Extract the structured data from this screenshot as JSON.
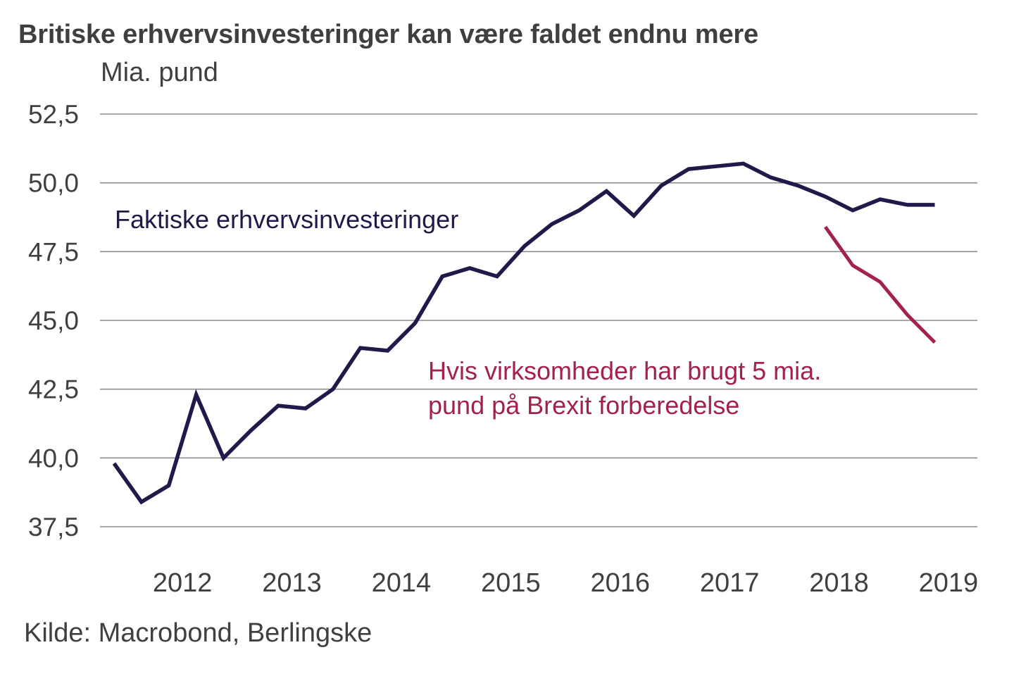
{
  "title": "Britiske erhvervsinvesteringer kan være faldet endnu mere",
  "unit_label": "Mia. pund",
  "source": "Kilde: Macrobond, Berlingske",
  "chart_data": {
    "type": "line",
    "title": "Britiske erhvervsinvesteringer kan være faldet endnu mere",
    "ylabel": "Mia. pund",
    "xlabel": "",
    "ylim": [
      37.5,
      52.5
    ],
    "yticks": [
      52.5,
      50.0,
      47.5,
      45.0,
      42.5,
      40.0,
      37.5
    ],
    "ytick_labels": [
      "52,5",
      "50,0",
      "47,5",
      "45,0",
      "42,5",
      "40,0",
      "37,5"
    ],
    "xtick_labels": [
      "2012",
      "2013",
      "2014",
      "2015",
      "2016",
      "2017",
      "2018",
      "2019"
    ],
    "x_unit": "quarter",
    "grid": true,
    "legend": "inline annotations",
    "colors": {
      "actual": "#1f1a4a",
      "scenario": "#a3214e",
      "grid": "#8c8c8c",
      "text": "#404040"
    },
    "series": [
      {
        "name": "Faktiske erhvervsinvesteringer",
        "label_lines": [
          "Faktiske erhvervsinvesteringer"
        ],
        "color": "#1f1a4a",
        "x": [
          "2011Q4",
          "2012Q1",
          "2012Q2",
          "2012Q3",
          "2012Q4",
          "2013Q1",
          "2013Q2",
          "2013Q3",
          "2013Q4",
          "2014Q1",
          "2014Q2",
          "2014Q3",
          "2014Q4",
          "2015Q1",
          "2015Q2",
          "2015Q3",
          "2015Q4",
          "2016Q1",
          "2016Q2",
          "2016Q3",
          "2016Q4",
          "2017Q1",
          "2017Q2",
          "2017Q3",
          "2017Q4",
          "2018Q1",
          "2018Q2",
          "2018Q3",
          "2018Q4",
          "2019Q1",
          "2019Q2"
        ],
        "values": [
          39.8,
          38.4,
          39.0,
          42.3,
          40.0,
          41.0,
          41.9,
          41.8,
          42.5,
          44.0,
          43.9,
          44.9,
          46.6,
          46.9,
          46.6,
          47.7,
          48.5,
          49.0,
          49.7,
          48.8,
          49.9,
          50.5,
          50.6,
          50.7,
          50.2,
          49.9,
          49.5,
          49.0,
          49.4,
          49.2,
          49.2
        ]
      },
      {
        "name": "Hvis virksomheder har brugt 5 mia. pund på Brexit forberedelse",
        "label_lines": [
          "Hvis virksomheder har brugt 5 mia.",
          "pund på Brexit forberedelse"
        ],
        "color": "#a3214e",
        "x": [
          "2018Q2",
          "2018Q3",
          "2018Q4",
          "2019Q1",
          "2019Q2"
        ],
        "values": [
          48.4,
          47.0,
          46.4,
          45.2,
          44.2
        ]
      }
    ]
  }
}
